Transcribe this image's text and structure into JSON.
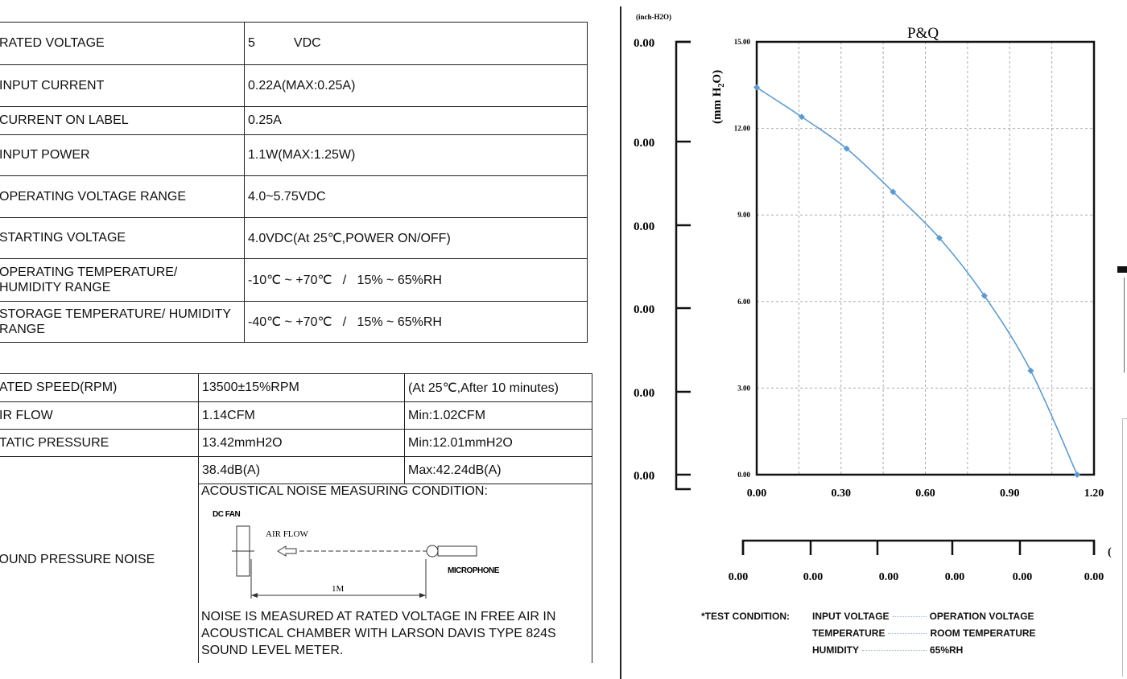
{
  "spec_table": [
    {
      "label": "RATED VOLTAGE",
      "value": "5",
      "unit": "VDC"
    },
    {
      "label": "INPUT  CURRENT",
      "value": "0.22A(MAX:0.25A)"
    },
    {
      "label": "CURRENT ON LABEL",
      "value": "0.25A"
    },
    {
      "label": "INPUT POWER",
      "value": "1.1W(MAX:1.25W)"
    },
    {
      "label": "OPERATING VOLTAGE RANGE",
      "value": "4.0~5.75VDC"
    },
    {
      "label": "STARTING VOLTAGE",
      "value": "4.0VDC(At 25℃,POWER ON/OFF)"
    },
    {
      "label": "OPERATING TEMPERATURE/ HUMIDITY RANGE",
      "value": "-10℃ ~ +70℃   /   15% ~ 65%RH"
    },
    {
      "label": "STORAGE TEMPERATURE/ HUMIDITY RANGE",
      "value": "-40℃ ~ +70℃   /   15% ~ 65%RH"
    }
  ],
  "perf_table": [
    {
      "label": "ATED SPEED(RPM)",
      "value": "13500±15%RPM",
      "note": "(At 25℃,After 10 minutes)"
    },
    {
      "label": "IR FLOW",
      "value": "1.14CFM",
      "note": "Min:1.02CFM"
    },
    {
      "label": "TATIC PRESSURE",
      "value": "13.42mmH2O",
      "note": "Min:12.01mmH2O"
    }
  ],
  "noise": {
    "label": "OUND PRESSURE NOISE",
    "value": "38.4dB(A)",
    "note": "Max:42.24dB(A)",
    "condition_title": "ACOUSTICAL NOISE MEASURING CONDITION:",
    "diagram": {
      "fan": "DC FAN",
      "airflow": "AIR FLOW",
      "mic": "MICROPHONE",
      "distance": "1M"
    },
    "description": "NOISE IS MEASURED AT RATED VOLTAGE IN FREE AIR IN ACOUSTICAL CHAMBER WITH LARSON DAVIS TYPE 824S SOUND LEVEL METER."
  },
  "chart_data": {
    "type": "line",
    "title": "P&Q",
    "ylabel": "(mm H2O)",
    "secondary_ylabel": "(inch-H2O)",
    "xlim": [
      0,
      1.2
    ],
    "ylim": [
      0,
      15
    ],
    "x_ticks": [
      "0.00",
      "0.30",
      "0.60",
      "0.90",
      "1.20"
    ],
    "y_ticks": [
      "0.00",
      "3.00",
      "6.00",
      "9.00",
      "12.00",
      "15.00"
    ],
    "secondary_y_ticks": [
      "0.00",
      "0.00",
      "0.00",
      "0.00",
      "0.00",
      "0.00"
    ],
    "secondary_x_ticks": [
      "0.00",
      "0.00",
      "0.00",
      "0.00",
      "0.00",
      "0.00"
    ],
    "grid": true,
    "color": "#5b9bd5",
    "x": [
      0.0,
      0.16,
      0.32,
      0.485,
      0.65,
      0.81,
      0.975,
      1.14
    ],
    "y": [
      13.42,
      12.4,
      11.3,
      9.8,
      8.2,
      6.2,
      3.6,
      0.0
    ]
  },
  "test_condition": {
    "heading": "*TEST CONDITION:",
    "rows": [
      {
        "key": "INPUT VOLTAGE",
        "value": "OPERATION VOLTAGE"
      },
      {
        "key": "TEMPERATURE",
        "value": "ROOM TEMPERATURE"
      },
      {
        "key": "HUMIDITY",
        "value": "65%RH"
      }
    ]
  }
}
